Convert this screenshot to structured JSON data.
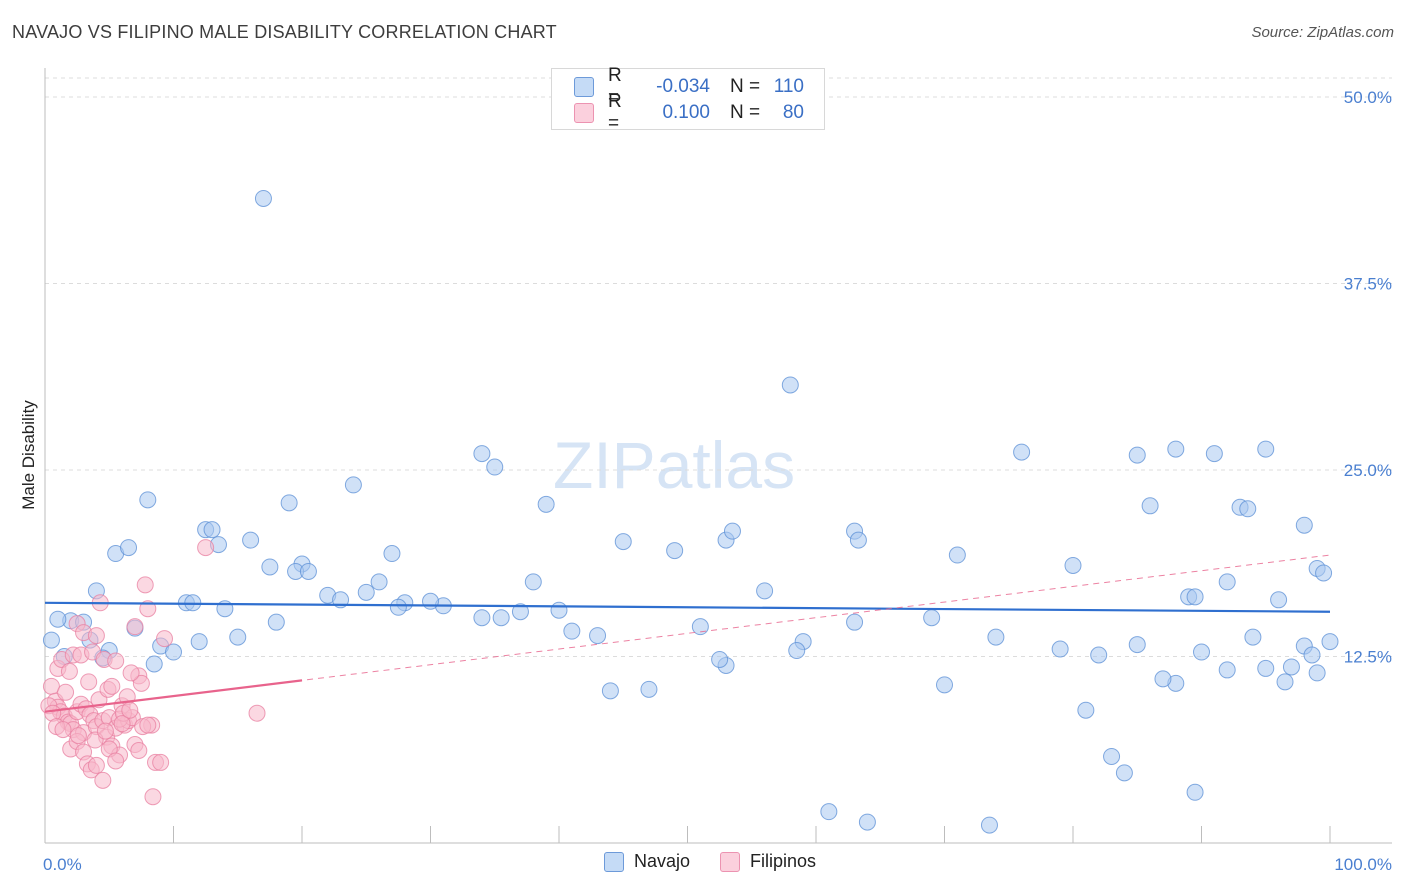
{
  "header": {
    "title": "NAVAJO VS FILIPINO MALE DISABILITY CORRELATION CHART",
    "source": "Source: ZipAtlas.com"
  },
  "watermark": {
    "zip": "ZIP",
    "atlas": "atlas"
  },
  "legend": {
    "r_label": "R =",
    "n_label": "N =",
    "rows": [
      {
        "name": "Navajo",
        "r": "-0.034",
        "n": "110",
        "color": "#a9c8f0",
        "stroke": "#5b8fd6"
      },
      {
        "name": "Filipinos",
        "r": "0.100",
        "n": "80",
        "color": "#f7b8cb",
        "stroke": "#e87fa0"
      }
    ]
  },
  "chart_data": {
    "type": "scatter",
    "title": "NAVAJO VS FILIPINO MALE DISABILITY CORRELATION CHART",
    "xlabel": "",
    "ylabel": "Male Disability",
    "xlim": [
      0,
      100
    ],
    "ylim": [
      0,
      50
    ],
    "x_tick_labels": [
      "0.0%",
      "100.0%"
    ],
    "y_ticks": [
      12.5,
      25.0,
      37.5,
      50.0
    ],
    "y_tick_labels": [
      "12.5%",
      "25.0%",
      "37.5%",
      "50.0%"
    ],
    "grid": true,
    "series": [
      {
        "name": "Navajo",
        "color": "#a9c8f0",
        "stroke": "#5b8fd6",
        "trend": {
          "x": [
            0,
            100
          ],
          "y": [
            16.1,
            15.5
          ],
          "style": "solid",
          "color": "#2f6fcf"
        },
        "points": [
          [
            17,
            43.2
          ],
          [
            58,
            30.7
          ],
          [
            8,
            23
          ],
          [
            12.5,
            21
          ],
          [
            19,
            22.8
          ],
          [
            24,
            24
          ],
          [
            34,
            26.1
          ],
          [
            35,
            25.2
          ],
          [
            39,
            22.7
          ],
          [
            45,
            20.2
          ],
          [
            53,
            20.3
          ],
          [
            53.5,
            20.9
          ],
          [
            63,
            20.9
          ],
          [
            63.3,
            20.3
          ],
          [
            71,
            19.3
          ],
          [
            76,
            26.2
          ],
          [
            80,
            18.6
          ],
          [
            85,
            26
          ],
          [
            88,
            26.4
          ],
          [
            91,
            26.1
          ],
          [
            86,
            22.6
          ],
          [
            93,
            22.5
          ],
          [
            93.6,
            22.4
          ],
          [
            95,
            26.4
          ],
          [
            98,
            21.3
          ],
          [
            99,
            18.4
          ],
          [
            99.5,
            18.1
          ],
          [
            96,
            16.3
          ],
          [
            89,
            16.5
          ],
          [
            89.5,
            16.5
          ],
          [
            92,
            17.5
          ],
          [
            94,
            13.8
          ],
          [
            98,
            13.2
          ],
          [
            98.6,
            12.6
          ],
          [
            99,
            11.4
          ],
          [
            100,
            13.5
          ],
          [
            97,
            11.8
          ],
          [
            96.5,
            10.8
          ],
          [
            95,
            11.7
          ],
          [
            92,
            11.6
          ],
          [
            90,
            12.8
          ],
          [
            88,
            10.7
          ],
          [
            87,
            11
          ],
          [
            85,
            13.3
          ],
          [
            82,
            12.6
          ],
          [
            79,
            13
          ],
          [
            74,
            13.8
          ],
          [
            69,
            15.1
          ],
          [
            63,
            14.8
          ],
          [
            59,
            13.5
          ],
          [
            56,
            16.9
          ],
          [
            53,
            11.9
          ],
          [
            52.5,
            12.3
          ],
          [
            51,
            14.5
          ],
          [
            47,
            10.3
          ],
          [
            44,
            10.2
          ],
          [
            38,
            17.5
          ],
          [
            37,
            15.5
          ],
          [
            34,
            15.1
          ],
          [
            31,
            15.9
          ],
          [
            28,
            16.1
          ],
          [
            27,
            19.4
          ],
          [
            26,
            17.5
          ],
          [
            25,
            16.8
          ],
          [
            20,
            18.7
          ],
          [
            18,
            14.8
          ],
          [
            15,
            13.8
          ],
          [
            14,
            15.7
          ],
          [
            12,
            13.5
          ],
          [
            11,
            16.1
          ],
          [
            9,
            13.2
          ],
          [
            7,
            14.4
          ],
          [
            5,
            12.9
          ],
          [
            4.5,
            12.4
          ],
          [
            3.5,
            13.6
          ],
          [
            2,
            14.9
          ],
          [
            1,
            15
          ],
          [
            0.5,
            13.6
          ],
          [
            1.5,
            12.5
          ],
          [
            3,
            14.8
          ],
          [
            4,
            16.9
          ],
          [
            5.5,
            19.4
          ],
          [
            6.5,
            19.8
          ],
          [
            8.5,
            12
          ],
          [
            10,
            12.8
          ],
          [
            11.5,
            16.1
          ],
          [
            13,
            21
          ],
          [
            13.5,
            20
          ],
          [
            16,
            20.3
          ],
          [
            17.5,
            18.5
          ],
          [
            19.5,
            18.2
          ],
          [
            20.5,
            18.2
          ],
          [
            22,
            16.6
          ],
          [
            23,
            16.3
          ],
          [
            27.5,
            15.8
          ],
          [
            30,
            16.2
          ],
          [
            35.5,
            15.1
          ],
          [
            40,
            15.6
          ],
          [
            41,
            14.2
          ],
          [
            43,
            13.9
          ],
          [
            49,
            19.6
          ],
          [
            58.5,
            12.9
          ],
          [
            70,
            10.6
          ],
          [
            81,
            8.9
          ],
          [
            83,
            5.8
          ],
          [
            89.5,
            3.4
          ],
          [
            73.5,
            1.2
          ],
          [
            61,
            2.1
          ],
          [
            64,
            1.4
          ],
          [
            84,
            4.7
          ]
        ]
      },
      {
        "name": "Filipinos",
        "color": "#f7b8cb",
        "stroke": "#e87fa0",
        "trend": {
          "x": [
            0,
            20
          ],
          "y": [
            8.8,
            10.9
          ],
          "style": "solid",
          "color": "#e8638c",
          "extended": {
            "x": [
              0,
              100
            ],
            "y": [
              8.8,
              19.3
            ],
            "style": "dashed"
          }
        },
        "points": [
          [
            0.5,
            10.5
          ],
          [
            0.8,
            9.5
          ],
          [
            1,
            9.1
          ],
          [
            1.2,
            8.8
          ],
          [
            1.5,
            8.5
          ],
          [
            1.8,
            8.1
          ],
          [
            2,
            8
          ],
          [
            2.2,
            7.6
          ],
          [
            2.5,
            8.8
          ],
          [
            2.8,
            9.3
          ],
          [
            3,
            7.4
          ],
          [
            3.2,
            9
          ],
          [
            3.5,
            8.6
          ],
          [
            3.8,
            8.2
          ],
          [
            4,
            7.8
          ],
          [
            4.2,
            9.6
          ],
          [
            4.5,
            8.2
          ],
          [
            4.8,
            7.1
          ],
          [
            5,
            8.4
          ],
          [
            5.2,
            6.5
          ],
          [
            5.5,
            7.7
          ],
          [
            5.8,
            5.9
          ],
          [
            6,
            9.2
          ],
          [
            6.2,
            7.9
          ],
          [
            6.5,
            8.2
          ],
          [
            6.8,
            8.4
          ],
          [
            7,
            6.6
          ],
          [
            7.3,
            11.2
          ],
          [
            7.5,
            10.7
          ],
          [
            7.8,
            17.3
          ],
          [
            8,
            15.7
          ],
          [
            8.3,
            7.9
          ],
          [
            8.6,
            5.4
          ],
          [
            9,
            5.4
          ],
          [
            9.3,
            13.7
          ],
          [
            1,
            11.7
          ],
          [
            1.3,
            12.3
          ],
          [
            1.6,
            10.1
          ],
          [
            1.9,
            11.5
          ],
          [
            2.2,
            12.6
          ],
          [
            2.5,
            14.7
          ],
          [
            2.8,
            12.6
          ],
          [
            3,
            14.1
          ],
          [
            3.4,
            10.8
          ],
          [
            3.7,
            12.8
          ],
          [
            4,
            13.9
          ],
          [
            4.3,
            16.1
          ],
          [
            4.6,
            12.3
          ],
          [
            4.9,
            10.3
          ],
          [
            5.2,
            10.5
          ],
          [
            5.5,
            12.2
          ],
          [
            5.8,
            8.3
          ],
          [
            6.1,
            8.7
          ],
          [
            6.4,
            9.8
          ],
          [
            6.7,
            11.4
          ],
          [
            7,
            14.5
          ],
          [
            7.3,
            6.2
          ],
          [
            7.6,
            7.8
          ],
          [
            8,
            7.9
          ],
          [
            8.4,
            3.1
          ],
          [
            2,
            6.3
          ],
          [
            2.5,
            6.8
          ],
          [
            3,
            6.1
          ],
          [
            3.3,
            5.3
          ],
          [
            3.6,
            4.9
          ],
          [
            4,
            5.2
          ],
          [
            4.5,
            4.2
          ],
          [
            5,
            6.3
          ],
          [
            5.5,
            5.5
          ],
          [
            6,
            8
          ],
          [
            12.5,
            19.8
          ],
          [
            16.5,
            8.7
          ],
          [
            0.3,
            9.2
          ],
          [
            0.6,
            8.7
          ],
          [
            0.9,
            7.8
          ],
          [
            1.4,
            7.6
          ],
          [
            2.6,
            7.2
          ],
          [
            3.9,
            6.9
          ],
          [
            4.7,
            7.5
          ],
          [
            6.6,
            8.9
          ]
        ]
      }
    ]
  }
}
